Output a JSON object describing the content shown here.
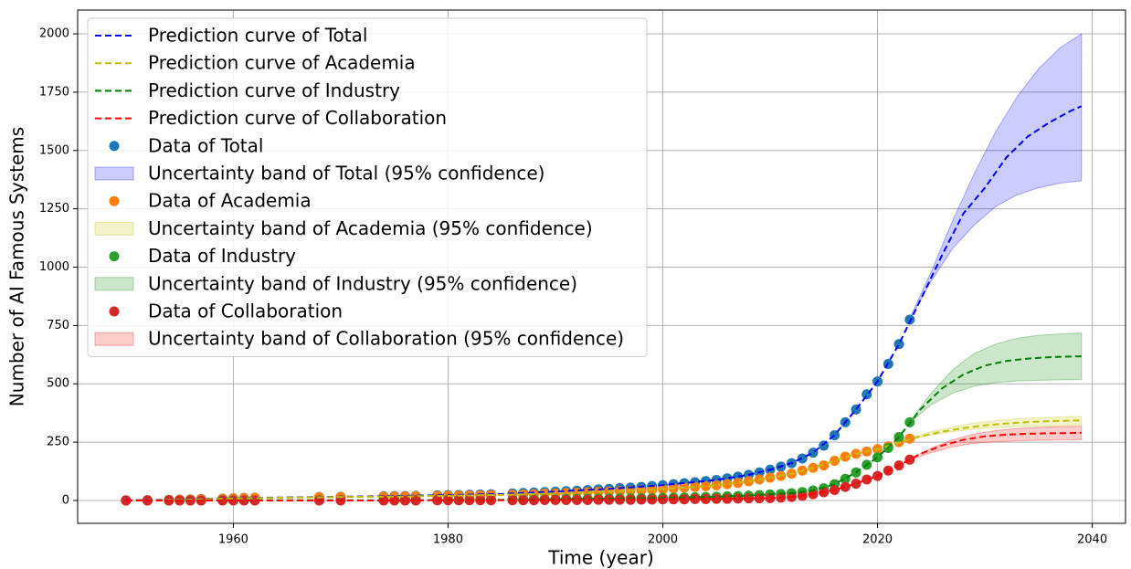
{
  "chart_data": {
    "type": "scatter_curve_band",
    "xlabel": "Time (year)",
    "ylabel": "Number of AI Famous Systems",
    "xlim": [
      1945.5,
      2043.1
    ],
    "ylim": [
      -98,
      2102
    ],
    "xticks": [
      1960,
      1980,
      2000,
      2020,
      2040
    ],
    "yticks": [
      0,
      250,
      500,
      750,
      1000,
      1250,
      1500,
      1750,
      2000
    ],
    "grid": true,
    "legend": "upper left",
    "data_x": [
      1950,
      1952,
      1954,
      1955,
      1956,
      1957,
      1959,
      1960,
      1961,
      1962,
      1968,
      1970,
      1974,
      1975,
      1976,
      1977,
      1979,
      1980,
      1981,
      1982,
      1983,
      1984,
      1986,
      1987,
      1988,
      1989,
      1990,
      1991,
      1992,
      1993,
      1994,
      1995,
      1996,
      1997,
      1998,
      1999,
      2000,
      2001,
      2002,
      2003,
      2004,
      2005,
      2006,
      2007,
      2008,
      2009,
      2010,
      2011,
      2012,
      2013,
      2014,
      2015,
      2016,
      2017,
      2018,
      2019,
      2020,
      2021,
      2022,
      2023
    ],
    "curve_x": [
      1950,
      1955,
      1960,
      1965,
      1970,
      1975,
      1980,
      1985,
      1990,
      1995,
      2000,
      2005,
      2008,
      2010,
      2012,
      2014,
      2016,
      2018,
      2020,
      2022,
      2024,
      2026,
      2028,
      2030,
      2032,
      2034,
      2036,
      2038,
      2039
    ],
    "band_x": [
      2023,
      2025,
      2027,
      2029,
      2031,
      2033,
      2035,
      2037,
      2039
    ],
    "series": [
      {
        "label_curve": "Prediction curve of Total",
        "label_data": "Data of Total",
        "label_band": "Uncertainty band of Total (95% confidence)",
        "curve_color": "#0000ff",
        "data_color": "#1f77b4",
        "band_color": "#0000ff",
        "data_values": [
          1,
          2,
          3,
          4,
          5,
          6,
          8,
          10,
          11,
          12,
          15,
          16,
          18,
          19,
          19,
          20,
          22,
          23,
          24,
          25,
          26,
          27,
          30,
          32,
          34,
          36,
          38,
          40,
          42,
          45,
          48,
          50,
          53,
          55,
          58,
          62,
          66,
          70,
          74,
          78,
          83,
          88,
          95,
          102,
          110,
          120,
          132,
          145,
          160,
          180,
          205,
          235,
          280,
          335,
          390,
          455,
          510,
          585,
          670,
          775
        ],
        "curve_values": [
          1,
          4,
          10,
          13,
          16,
          19,
          23,
          28,
          38,
          50,
          66,
          88,
          110,
          132,
          160,
          205,
          280,
          390,
          510,
          670,
          860,
          1050,
          1230,
          1340,
          1470,
          1560,
          1620,
          1670,
          1690
        ],
        "band_lower": [
          775,
          940,
          1080,
          1180,
          1260,
          1310,
          1340,
          1360,
          1370
        ],
        "band_upper": [
          780,
          980,
          1200,
          1400,
          1580,
          1730,
          1850,
          1940,
          2000
        ]
      },
      {
        "label_curve": "Prediction curve of Academia",
        "label_data": "Data of Academia",
        "label_band": "Uncertainty band of Academia (95% confidence)",
        "curve_color": "#bfbf00",
        "data_color": "#ff7f0e",
        "band_color": "#bfbf00",
        "data_values": [
          0,
          1,
          2,
          3,
          4,
          5,
          7,
          9,
          10,
          11,
          14,
          15,
          16,
          17,
          17,
          18,
          19,
          20,
          21,
          21,
          22,
          23,
          25,
          26,
          27,
          29,
          30,
          32,
          33,
          35,
          37,
          38,
          40,
          42,
          44,
          46,
          49,
          52,
          55,
          58,
          61,
          65,
          70,
          75,
          82,
          90,
          98,
          105,
          115,
          128,
          140,
          150,
          170,
          188,
          200,
          210,
          220,
          232,
          250,
          265
        ],
        "curve_values": [
          0,
          3,
          9,
          12,
          15,
          17,
          20,
          24,
          30,
          38,
          49,
          65,
          82,
          98,
          115,
          140,
          170,
          200,
          220,
          248,
          275,
          295,
          310,
          322,
          330,
          336,
          340,
          342,
          343
        ],
        "band_lower": [
          262,
          280,
          295,
          305,
          312,
          316,
          318,
          320,
          322
        ],
        "band_upper": [
          268,
          295,
          315,
          332,
          342,
          350,
          355,
          358,
          360
        ]
      },
      {
        "label_curve": "Prediction curve of Industry",
        "label_data": "Data of Industry",
        "label_band": "Uncertainty band of Industry (95% confidence)",
        "curve_color": "#008000",
        "data_color": "#2ca02c",
        "band_color": "#008000",
        "data_values": [
          0,
          0,
          0,
          0,
          0,
          0,
          1,
          1,
          1,
          1,
          1,
          1,
          1,
          1,
          1,
          1,
          2,
          2,
          2,
          3,
          3,
          3,
          4,
          4,
          5,
          5,
          5,
          6,
          6,
          7,
          8,
          8,
          9,
          9,
          10,
          10,
          11,
          12,
          13,
          14,
          15,
          16,
          18,
          19,
          21,
          23,
          26,
          28,
          31,
          36,
          43,
          52,
          70,
          93,
          120,
          153,
          185,
          225,
          272,
          335
        ],
        "curve_values": [
          0,
          0,
          1,
          1,
          1,
          1,
          2,
          3,
          5,
          8,
          11,
          16,
          21,
          26,
          31,
          43,
          70,
          120,
          185,
          272,
          390,
          480,
          540,
          578,
          598,
          608,
          614,
          617,
          618
        ],
        "band_lower": [
          333,
          410,
          460,
          490,
          505,
          512,
          515,
          517,
          518
        ],
        "band_upper": [
          337,
          460,
          560,
          630,
          670,
          695,
          708,
          714,
          718
        ]
      },
      {
        "label_curve": "Prediction curve of Collaboration",
        "label_data": "Data of Collaboration",
        "label_band": "Uncertainty band of Collaboration (95% confidence)",
        "curve_color": "#ff0000",
        "data_color": "#d62728",
        "band_color": "#ff0000",
        "data_values": [
          0,
          0,
          0,
          0,
          0,
          0,
          0,
          0,
          0,
          0,
          0,
          0,
          0,
          0,
          0,
          0,
          1,
          1,
          1,
          1,
          1,
          1,
          1,
          1,
          1,
          2,
          2,
          2,
          2,
          2,
          3,
          3,
          3,
          3,
          4,
          4,
          5,
          5,
          5,
          6,
          6,
          7,
          7,
          8,
          9,
          9,
          10,
          12,
          15,
          20,
          27,
          35,
          45,
          58,
          72,
          90,
          105,
          128,
          150,
          175
        ],
        "curve_values": [
          0,
          0,
          0,
          0,
          0,
          0,
          1,
          1,
          2,
          3,
          5,
          7,
          9,
          10,
          15,
          27,
          45,
          72,
          105,
          150,
          200,
          235,
          260,
          275,
          282,
          286,
          288,
          289,
          290
        ],
        "band_lower": [
          173,
          205,
          230,
          245,
          252,
          256,
          258,
          259,
          260
        ],
        "band_upper": [
          177,
          225,
          260,
          285,
          300,
          308,
          313,
          316,
          318
        ]
      }
    ]
  }
}
